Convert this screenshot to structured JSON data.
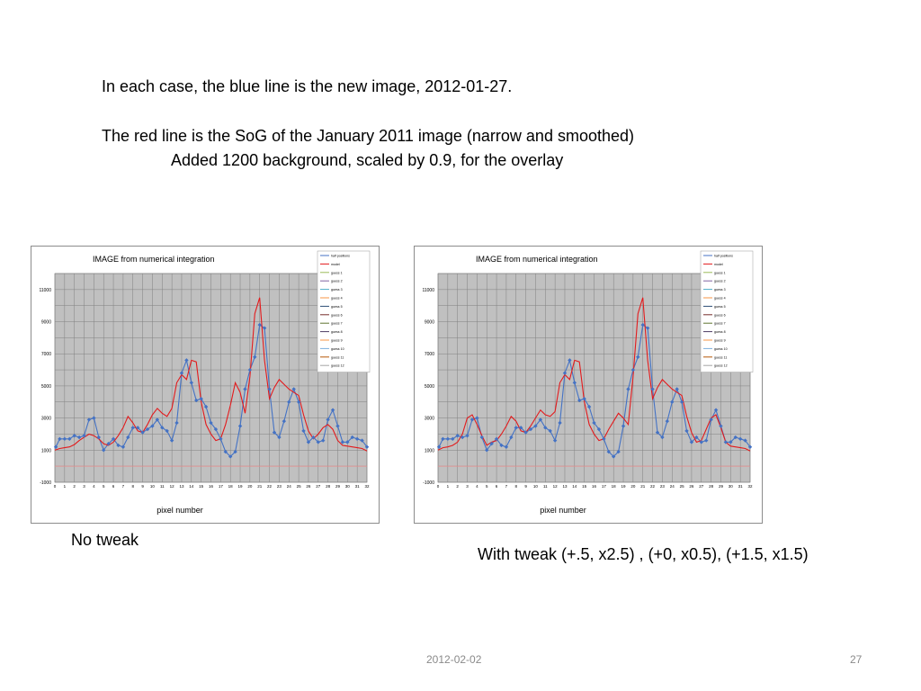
{
  "slide": {
    "line1": "In each case, the blue line is the new image,  2012-01-27.",
    "line2": "The red line is the SoG of the January 2011 image (narrow and smoothed)",
    "line3": "Added 1200 background, scaled by 0.9, for the overlay",
    "caption_left": "No tweak",
    "caption_right": "With tweak (+.5, x2.5) , (+0, x0.5), (+1.5, x1.5)",
    "footer_date": "2012-02-02",
    "footer_page": "27"
  },
  "colors": {
    "blue": "#4472c4",
    "red": "#e31a1c",
    "plot_bg": "#c0c0c0",
    "grid": "#808080",
    "baseline": "#e88a8a"
  },
  "chart_data": [
    {
      "type": "line",
      "title": "IMAGE from numerical integration",
      "xlabel": "pixel number",
      "ylabel": "",
      "xlim": [
        0,
        32
      ],
      "ylim": [
        -1000,
        12000
      ],
      "yticks": [
        -1000,
        1000,
        3000,
        5000,
        7000,
        9000,
        11000
      ],
      "xticks": [
        0,
        1,
        2,
        3,
        4,
        5,
        6,
        7,
        8,
        9,
        10,
        11,
        12,
        13,
        14,
        15,
        16,
        17,
        18,
        19,
        20,
        21,
        22,
        23,
        24,
        25,
        26,
        27,
        28,
        29,
        30,
        31,
        32
      ],
      "grid": true,
      "legend_position": "top-right",
      "legend": [
        "half positions",
        "model",
        "guess 1",
        "guess 2",
        "guess 3",
        "guess 4",
        "guess 5",
        "guess 6",
        "guess 7",
        "guess 8",
        "guess 9",
        "guess 10",
        "guess 11",
        "guess 12"
      ],
      "series": [
        {
          "name": "half positions",
          "x": [
            0.1,
            0.5,
            1,
            1.5,
            2,
            2.5,
            3,
            3.5,
            4,
            4.5,
            5,
            5.5,
            6,
            6.5,
            7,
            7.5,
            8,
            8.5,
            9,
            9.5,
            10,
            10.5,
            11,
            11.5,
            12,
            12.5,
            13,
            13.5,
            14,
            14.5,
            15,
            15.5,
            16,
            16.5,
            17,
            17.5,
            18,
            18.5,
            19,
            19.5,
            20,
            20.5,
            21,
            21.5,
            22,
            22.5,
            23,
            23.5,
            24,
            24.5,
            25,
            25.5,
            26,
            26.5,
            27,
            27.5,
            28,
            28.5,
            29,
            29.5,
            30,
            30.5,
            31,
            31.5,
            32
          ],
          "y": [
            1200,
            1700,
            1700,
            1700,
            1900,
            1800,
            1900,
            2900,
            3000,
            1800,
            1000,
            1400,
            1700,
            1300,
            1200,
            1800,
            2400,
            2400,
            2100,
            2300,
            2500,
            2900,
            2400,
            2200,
            1600,
            2700,
            5800,
            6600,
            5200,
            4100,
            4200,
            3700,
            2700,
            2300,
            1700,
            900,
            600,
            900,
            2500,
            4800,
            6000,
            6800,
            8800,
            8600,
            4800,
            2100,
            1800,
            2800,
            4000,
            4800,
            4000,
            2200,
            1500,
            1800,
            1500,
            1600,
            2900,
            3500,
            2500,
            1500,
            1500,
            1800,
            1700,
            1600,
            1200
          ]
        },
        {
          "name": "model",
          "x": [
            0,
            0.5,
            1,
            1.5,
            2,
            2.5,
            3,
            3.5,
            4,
            4.5,
            5,
            5.5,
            6,
            6.5,
            7,
            7.5,
            8,
            8.5,
            9,
            9.5,
            10,
            10.5,
            11,
            11.5,
            12,
            12.5,
            13,
            13.5,
            14,
            14.5,
            15,
            15.5,
            16,
            16.5,
            17,
            17.5,
            18,
            18.5,
            19,
            19.5,
            20,
            20.5,
            21,
            21.5,
            22,
            22.5,
            23,
            23.5,
            24,
            24.5,
            25,
            25.5,
            26,
            26.5,
            27,
            27.5,
            28,
            28.5,
            29,
            29.5,
            30,
            30.5,
            31,
            31.5,
            32
          ],
          "y": [
            1000,
            1100,
            1150,
            1200,
            1350,
            1600,
            1800,
            2000,
            1900,
            1700,
            1400,
            1300,
            1500,
            1900,
            2400,
            3100,
            2700,
            2200,
            2100,
            2600,
            3200,
            3600,
            3300,
            3100,
            3600,
            5200,
            5700,
            5400,
            6600,
            6500,
            4000,
            2600,
            2000,
            1600,
            1700,
            2600,
            3800,
            5200,
            4600,
            3300,
            5600,
            9500,
            10500,
            6600,
            4200,
            4900,
            5400,
            5100,
            4800,
            4600,
            4400,
            3200,
            2200,
            1700,
            2000,
            2400,
            2600,
            2300,
            1600,
            1300,
            1250,
            1200,
            1150,
            1100,
            950
          ]
        }
      ]
    },
    {
      "type": "line",
      "title": "IMAGE from numerical integration",
      "xlabel": "pixel number",
      "ylabel": "",
      "xlim": [
        0,
        32
      ],
      "ylim": [
        -1000,
        12000
      ],
      "yticks": [
        -1000,
        1000,
        3000,
        5000,
        7000,
        9000,
        11000
      ],
      "xticks": [
        0,
        1,
        2,
        3,
        4,
        5,
        6,
        7,
        8,
        9,
        10,
        11,
        12,
        13,
        14,
        15,
        16,
        17,
        18,
        19,
        20,
        21,
        22,
        23,
        24,
        25,
        26,
        27,
        28,
        29,
        30,
        31,
        32
      ],
      "grid": true,
      "legend_position": "top-right",
      "legend": [
        "half positions",
        "model",
        "guess 1",
        "guess 2",
        "guess 3",
        "guess 4",
        "guess 5",
        "guess 6",
        "guess 7",
        "guess 8",
        "guess 9",
        "guess 10",
        "guess 11",
        "guess 12"
      ],
      "series": [
        {
          "name": "half positions",
          "x": [
            0.1,
            0.5,
            1,
            1.5,
            2,
            2.5,
            3,
            3.5,
            4,
            4.5,
            5,
            5.5,
            6,
            6.5,
            7,
            7.5,
            8,
            8.5,
            9,
            9.5,
            10,
            10.5,
            11,
            11.5,
            12,
            12.5,
            13,
            13.5,
            14,
            14.5,
            15,
            15.5,
            16,
            16.5,
            17,
            17.5,
            18,
            18.5,
            19,
            19.5,
            20,
            20.5,
            21,
            21.5,
            22,
            22.5,
            23,
            23.5,
            24,
            24.5,
            25,
            25.5,
            26,
            26.5,
            27,
            27.5,
            28,
            28.5,
            29,
            29.5,
            30,
            30.5,
            31,
            31.5,
            32
          ],
          "y": [
            1200,
            1700,
            1700,
            1700,
            1900,
            1800,
            1900,
            2900,
            3000,
            1800,
            1000,
            1400,
            1700,
            1300,
            1200,
            1800,
            2400,
            2400,
            2100,
            2300,
            2500,
            2900,
            2400,
            2200,
            1600,
            2700,
            5800,
            6600,
            5200,
            4100,
            4200,
            3700,
            2700,
            2300,
            1700,
            900,
            600,
            900,
            2500,
            4800,
            6000,
            6800,
            8800,
            8600,
            4800,
            2100,
            1800,
            2800,
            4000,
            4800,
            4000,
            2200,
            1500,
            1800,
            1500,
            1600,
            2900,
            3500,
            2500,
            1500,
            1500,
            1800,
            1700,
            1600,
            1200
          ]
        },
        {
          "name": "model",
          "x": [
            0,
            0.5,
            1,
            1.5,
            2,
            2.5,
            3,
            3.5,
            4,
            4.5,
            5,
            5.5,
            6,
            6.5,
            7,
            7.5,
            8,
            8.5,
            9,
            9.5,
            10,
            10.5,
            11,
            11.5,
            12,
            12.5,
            13,
            13.5,
            14,
            14.5,
            15,
            15.5,
            16,
            16.5,
            17,
            17.5,
            18,
            18.5,
            19,
            19.5,
            20,
            20.5,
            21,
            21.5,
            22,
            22.5,
            23,
            23.5,
            24,
            24.5,
            25,
            25.5,
            26,
            26.5,
            27,
            27.5,
            28,
            28.5,
            29,
            29.5,
            30,
            30.5,
            31,
            31.5,
            32
          ],
          "y": [
            1000,
            1150,
            1200,
            1300,
            1500,
            2000,
            3000,
            3200,
            2600,
            1900,
            1300,
            1500,
            1600,
            2000,
            2500,
            3100,
            2800,
            2200,
            2100,
            2500,
            3000,
            3500,
            3200,
            3100,
            3400,
            5200,
            5700,
            5400,
            6600,
            6500,
            4000,
            2600,
            2000,
            1600,
            1700,
            2300,
            2800,
            3300,
            3000,
            2600,
            5600,
            9500,
            10500,
            6600,
            4200,
            4900,
            5400,
            5100,
            4800,
            4600,
            4400,
            3100,
            2100,
            1500,
            1600,
            2300,
            3000,
            3200,
            2400,
            1500,
            1250,
            1200,
            1150,
            1100,
            950
          ]
        }
      ]
    }
  ]
}
